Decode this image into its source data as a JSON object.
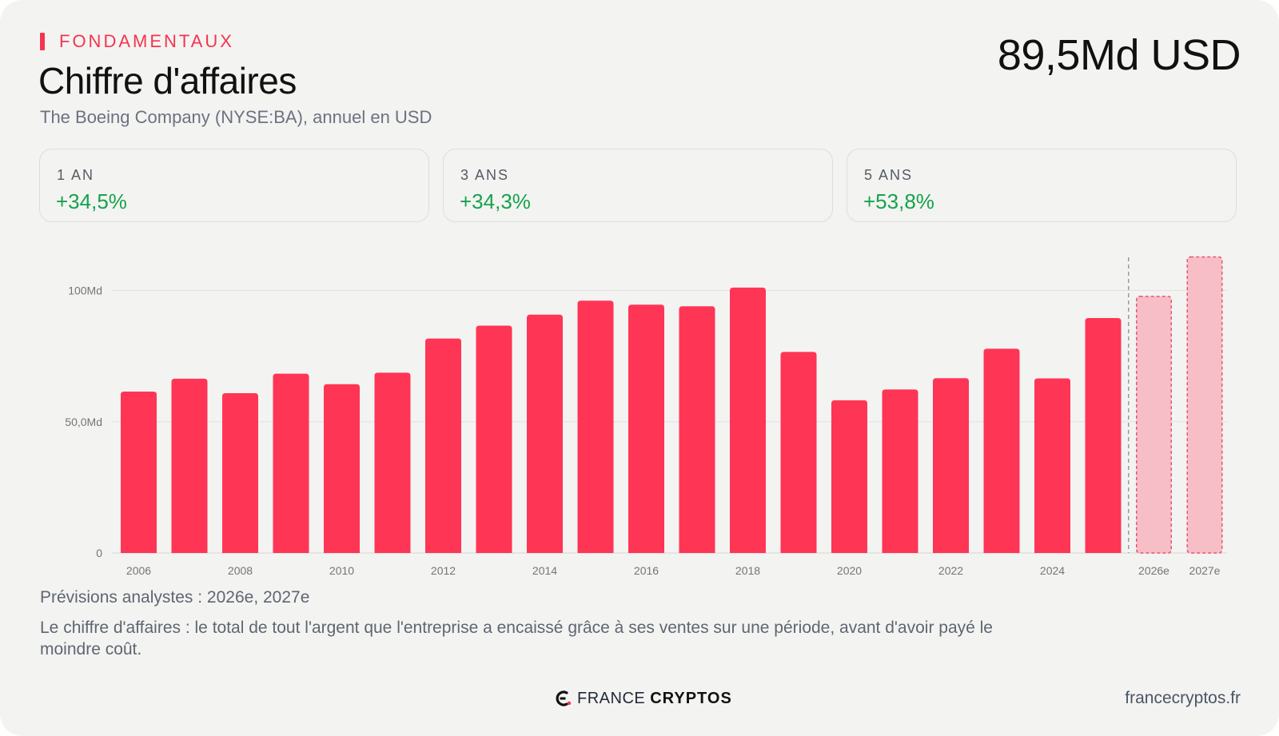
{
  "header": {
    "eyebrow": "FONDAMENTAUX",
    "title": "Chiffre d'affaires",
    "subtitle": "The Boeing Company (NYSE:BA), annuel en USD",
    "headline_value": "89,5Md USD"
  },
  "stats": [
    {
      "label": "1 AN",
      "value": "+34,5%"
    },
    {
      "label": "3 ANS",
      "value": "+34,3%"
    },
    {
      "label": "5 ANS",
      "value": "+53,8%"
    }
  ],
  "chart_data": {
    "type": "bar",
    "categories": [
      "2006",
      "2007",
      "2008",
      "2009",
      "2010",
      "2011",
      "2012",
      "2013",
      "2014",
      "2015",
      "2016",
      "2017",
      "2018",
      "2019",
      "2020",
      "2021",
      "2022",
      "2023",
      "2024",
      "2025",
      "2026e",
      "2027e"
    ],
    "x_tick_labels": [
      "2006",
      "2008",
      "2010",
      "2012",
      "2014",
      "2016",
      "2018",
      "2020",
      "2022",
      "2024",
      "2026e",
      "2027e"
    ],
    "values": [
      61.5,
      66.4,
      60.9,
      68.3,
      64.3,
      68.7,
      81.7,
      86.6,
      90.8,
      96.1,
      94.6,
      94.0,
      101.1,
      76.6,
      58.2,
      62.3,
      66.6,
      77.8,
      66.5,
      89.5,
      98.0,
      113.0
    ],
    "estimate_categories": [
      "2026e",
      "2027e"
    ],
    "y_ticks": [
      {
        "value": 0,
        "label": "0"
      },
      {
        "value": 50,
        "label": "50,0Md"
      },
      {
        "value": 100,
        "label": "100Md"
      }
    ],
    "ylim": [
      0,
      115
    ],
    "grid": true,
    "colors": {
      "actual": "#ff3555",
      "estimate": "#f7bec7",
      "estimate_border": "#e8556f",
      "divider": "#9a9a9a"
    }
  },
  "footer": {
    "forecast_note": "Prévisions analystes : 2026e, 2027e",
    "description": "Le chiffre d'affaires : le total de tout l'argent que l'entreprise a encaissé grâce à ses ventes sur une période, avant d'avoir payé le moindre coût.",
    "logo_light": "FRANCE",
    "logo_bold": "CRYPTOS",
    "site": "francecryptos.fr"
  }
}
